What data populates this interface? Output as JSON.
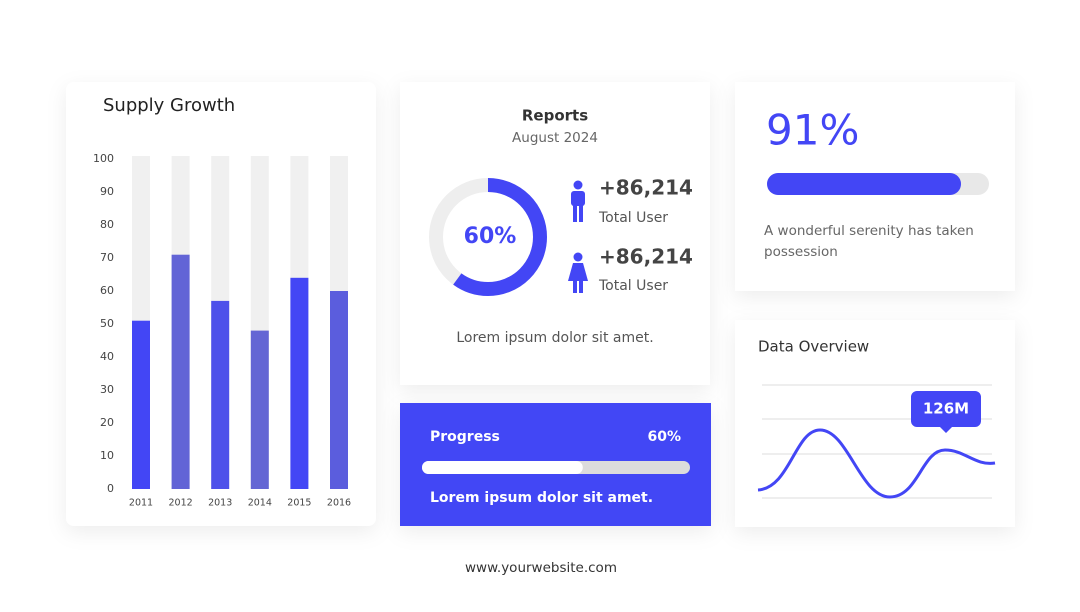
{
  "supply_growth": {
    "type": "bar",
    "title": "Supply Growth",
    "categories": [
      "2011",
      "2012",
      "2013",
      "2014",
      "2015",
      "2016"
    ],
    "values": [
      51,
      71,
      57,
      48,
      64,
      60
    ],
    "colors": [
      "#4346f5",
      "#6264d6",
      "#4e51ea",
      "#6466d4",
      "#4346f5",
      "#5b5ddd"
    ],
    "track_color": "#f0f0f0",
    "ylim": [
      0,
      100
    ],
    "yticks": [
      0,
      10,
      20,
      30,
      40,
      50,
      60,
      70,
      80,
      90,
      100
    ]
  },
  "reports": {
    "title": "Reports",
    "subtitle": "August 2024",
    "donut": {
      "value": 60,
      "label": "60%"
    },
    "stats": [
      {
        "value": "+86,214",
        "label": "Total User"
      },
      {
        "value": "+86,214",
        "label": "Total User"
      }
    ],
    "caption": "Lorem ipsum dolor sit amet."
  },
  "progress": {
    "title": "Progress",
    "percent": {
      "value": 60,
      "label": "60%"
    },
    "caption": "Lorem ipsum dolor sit amet."
  },
  "highlight": {
    "percent": {
      "value": 91,
      "label": "91%"
    },
    "caption": "A wonderful serenity has taken possession"
  },
  "data_overview": {
    "title": "Data Overview",
    "callout": "126M"
  },
  "footer": "www.yourwebsite.com"
}
